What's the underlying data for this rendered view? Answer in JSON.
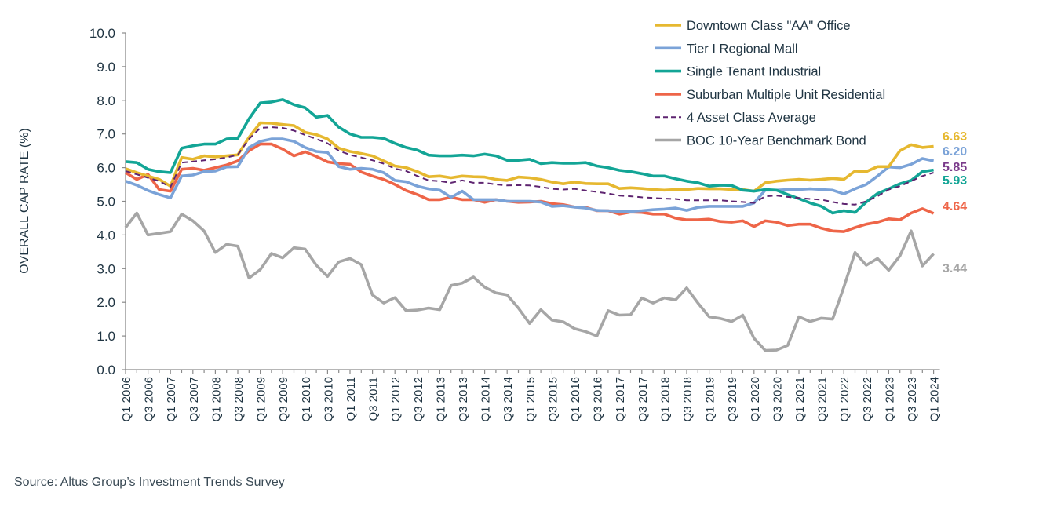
{
  "chart_data": {
    "type": "line",
    "title": "",
    "xlabel": "",
    "ylabel": "OVERALL CAP RATE (%)",
    "ylim": [
      0,
      10
    ],
    "yticks": [
      "0.0",
      "1.0",
      "2.0",
      "3.0",
      "4.0",
      "5.0",
      "6.0",
      "7.0",
      "8.0",
      "9.0",
      "10.0"
    ],
    "grid": false,
    "legend_position": "top-right",
    "x": [
      "Q1 2006",
      "Q2 2006",
      "Q3 2006",
      "Q4 2006",
      "Q1 2007",
      "Q2 2007",
      "Q3 2007",
      "Q4 2007",
      "Q1 2008",
      "Q2 2008",
      "Q3 2008",
      "Q4 2008",
      "Q1 2009",
      "Q2 2009",
      "Q3 2009",
      "Q4 2009",
      "Q1 2010",
      "Q2 2010",
      "Q3 2010",
      "Q4 2010",
      "Q1 2011",
      "Q2 2011",
      "Q3 2011",
      "Q4 2011",
      "Q1 2012",
      "Q2 2012",
      "Q3 2012",
      "Q4 2012",
      "Q1 2013",
      "Q2 2013",
      "Q3 2013",
      "Q4 2013",
      "Q1 2014",
      "Q2 2014",
      "Q3 2014",
      "Q4 2014",
      "Q1 2015",
      "Q2 2015",
      "Q3 2015",
      "Q4 2015",
      "Q1 2016",
      "Q2 2016",
      "Q3 2016",
      "Q4 2016",
      "Q1 2017",
      "Q2 2017",
      "Q3 2017",
      "Q4 2017",
      "Q1 2018",
      "Q2 2018",
      "Q3 2018",
      "Q4 2018",
      "Q1 2019",
      "Q2 2019",
      "Q3 2019",
      "Q4 2019",
      "Q1 2020",
      "Q2 2020",
      "Q3 2020",
      "Q4 2020",
      "Q1 2021",
      "Q2 2021",
      "Q3 2021",
      "Q4 2021",
      "Q1 2022",
      "Q2 2022",
      "Q3 2022",
      "Q4 2022",
      "Q1 2023",
      "Q2 2023",
      "Q3 2023",
      "Q4 2023",
      "Q1 2024"
    ],
    "xtick_labels": [
      "Q1 2006",
      "Q3 2006",
      "Q1 2007",
      "Q3 2007",
      "Q1 2008",
      "Q3 2008",
      "Q1 2009",
      "Q3 2009",
      "Q1 2010",
      "Q3 2010",
      "Q1 2011",
      "Q3 2011",
      "Q1 2012",
      "Q3 2012",
      "Q1 2013",
      "Q3 2013",
      "Q1 2014",
      "Q3 2014",
      "Q1 2015",
      "Q3 2015",
      "Q1 2016",
      "Q3 2016",
      "Q1 2017",
      "Q3 2017",
      "Q1 2018",
      "Q3 2018",
      "Q1 2019",
      "Q3 2019",
      "Q1 2020",
      "Q3 2020",
      "Q1 2021",
      "Q3 2021",
      "Q1 2022",
      "Q3 2022",
      "Q1 2023",
      "Q3 2023",
      "Q1 2024"
    ],
    "series": [
      {
        "name": "Downtown Class \"AA\" Office",
        "color": "#E6B830",
        "dashed": false,
        "end_label": "6.63",
        "values": [
          5.97,
          5.85,
          5.75,
          5.65,
          5.45,
          6.3,
          6.25,
          6.35,
          6.32,
          6.35,
          6.38,
          6.9,
          7.33,
          7.32,
          7.28,
          7.25,
          7.05,
          6.98,
          6.85,
          6.58,
          6.48,
          6.42,
          6.35,
          6.2,
          6.05,
          6.0,
          5.88,
          5.73,
          5.75,
          5.7,
          5.75,
          5.73,
          5.72,
          5.65,
          5.62,
          5.72,
          5.7,
          5.65,
          5.57,
          5.52,
          5.57,
          5.53,
          5.52,
          5.52,
          5.38,
          5.4,
          5.38,
          5.35,
          5.33,
          5.35,
          5.35,
          5.38,
          5.37,
          5.37,
          5.35,
          5.35,
          5.3,
          5.55,
          5.6,
          5.63,
          5.65,
          5.63,
          5.65,
          5.68,
          5.65,
          5.9,
          5.88,
          6.03,
          6.03,
          6.5,
          6.68,
          6.6,
          6.63
        ]
      },
      {
        "name": "Tier I Regional Mall",
        "color": "#7BA3D8",
        "dashed": false,
        "end_label": "6.20",
        "values": [
          5.6,
          5.48,
          5.32,
          5.2,
          5.1,
          5.75,
          5.78,
          5.88,
          5.9,
          6.02,
          6.03,
          6.6,
          6.78,
          6.85,
          6.85,
          6.78,
          6.6,
          6.48,
          6.45,
          6.03,
          5.95,
          5.98,
          5.95,
          5.85,
          5.62,
          5.58,
          5.45,
          5.37,
          5.33,
          5.12,
          5.3,
          5.05,
          5.05,
          5.05,
          5.0,
          5.0,
          5.0,
          4.98,
          4.85,
          4.87,
          4.83,
          4.8,
          4.73,
          4.72,
          4.7,
          4.7,
          4.72,
          4.75,
          4.77,
          4.8,
          4.73,
          4.82,
          4.85,
          4.85,
          4.85,
          4.85,
          4.95,
          5.33,
          5.33,
          5.35,
          5.35,
          5.37,
          5.35,
          5.33,
          5.22,
          5.37,
          5.5,
          5.75,
          6.02,
          6.0,
          6.1,
          6.27,
          6.2
        ]
      },
      {
        "name": "Single Tenant Industrial",
        "color": "#13A596",
        "dashed": false,
        "end_label": "5.93",
        "values": [
          6.18,
          6.15,
          5.95,
          5.88,
          5.85,
          6.58,
          6.65,
          6.7,
          6.7,
          6.85,
          6.87,
          7.45,
          7.92,
          7.95,
          8.02,
          7.87,
          7.78,
          7.5,
          7.55,
          7.2,
          7.0,
          6.9,
          6.9,
          6.87,
          6.72,
          6.6,
          6.52,
          6.37,
          6.35,
          6.35,
          6.37,
          6.35,
          6.4,
          6.35,
          6.22,
          6.22,
          6.25,
          6.12,
          6.15,
          6.13,
          6.13,
          6.15,
          6.05,
          6.0,
          5.92,
          5.88,
          5.82,
          5.75,
          5.75,
          5.67,
          5.6,
          5.55,
          5.45,
          5.48,
          5.47,
          5.33,
          5.3,
          5.35,
          5.33,
          5.2,
          5.08,
          4.95,
          4.85,
          4.65,
          4.72,
          4.67,
          4.98,
          5.23,
          5.37,
          5.52,
          5.62,
          5.88,
          5.93
        ]
      },
      {
        "name": "Suburban Multiple Unit Residential",
        "color": "#EE6548",
        "dashed": false,
        "end_label": "4.64",
        "values": [
          5.85,
          5.65,
          5.8,
          5.35,
          5.3,
          5.95,
          5.98,
          5.92,
          6.0,
          6.08,
          6.2,
          6.5,
          6.7,
          6.7,
          6.55,
          6.35,
          6.47,
          6.33,
          6.17,
          6.12,
          6.1,
          5.87,
          5.75,
          5.65,
          5.5,
          5.32,
          5.2,
          5.05,
          5.05,
          5.12,
          5.05,
          5.05,
          4.97,
          5.05,
          5.0,
          4.97,
          4.98,
          5.0,
          4.93,
          4.9,
          4.83,
          4.82,
          4.72,
          4.72,
          4.62,
          4.68,
          4.67,
          4.62,
          4.62,
          4.5,
          4.45,
          4.45,
          4.47,
          4.4,
          4.38,
          4.42,
          4.25,
          4.42,
          4.38,
          4.28,
          4.32,
          4.32,
          4.2,
          4.12,
          4.1,
          4.22,
          4.32,
          4.38,
          4.48,
          4.45,
          4.65,
          4.78,
          4.64
        ]
      },
      {
        "name": "4 Asset Class Average",
        "color": "#5E2470",
        "label_color": "#7A3A8A",
        "dashed": true,
        "end_label": "5.85",
        "values": [
          5.9,
          5.8,
          5.7,
          5.6,
          5.42,
          6.15,
          6.18,
          6.22,
          6.25,
          6.3,
          6.38,
          6.85,
          7.18,
          7.2,
          7.18,
          7.1,
          6.97,
          6.85,
          6.72,
          6.5,
          6.38,
          6.3,
          6.22,
          6.12,
          5.97,
          5.9,
          5.75,
          5.62,
          5.6,
          5.55,
          5.62,
          5.55,
          5.55,
          5.5,
          5.47,
          5.48,
          5.47,
          5.43,
          5.37,
          5.35,
          5.37,
          5.32,
          5.28,
          5.23,
          5.17,
          5.15,
          5.12,
          5.1,
          5.08,
          5.07,
          5.03,
          5.03,
          5.03,
          5.03,
          5.0,
          4.98,
          4.95,
          5.15,
          5.17,
          5.13,
          5.1,
          5.07,
          5.05,
          4.98,
          4.92,
          4.9,
          5.0,
          5.15,
          5.35,
          5.45,
          5.6,
          5.75,
          5.85
        ]
      },
      {
        "name": "BOC 10-Year Benchmark Bond",
        "color": "#A6A6A6",
        "dashed": false,
        "end_label": "3.44",
        "values": [
          4.22,
          4.65,
          4.0,
          4.05,
          4.1,
          4.62,
          4.42,
          4.12,
          3.48,
          3.72,
          3.67,
          2.72,
          2.97,
          3.45,
          3.32,
          3.62,
          3.58,
          3.1,
          2.77,
          3.2,
          3.3,
          3.12,
          2.22,
          1.98,
          2.14,
          1.75,
          1.77,
          1.83,
          1.78,
          2.5,
          2.57,
          2.75,
          2.45,
          2.28,
          2.22,
          1.83,
          1.37,
          1.78,
          1.47,
          1.42,
          1.22,
          1.13,
          1.0,
          1.75,
          1.62,
          1.63,
          2.13,
          1.98,
          2.13,
          2.07,
          2.43,
          1.98,
          1.57,
          1.52,
          1.43,
          1.62,
          0.93,
          0.57,
          0.58,
          0.72,
          1.57,
          1.43,
          1.53,
          1.5,
          2.45,
          3.48,
          3.1,
          3.3,
          2.95,
          3.38,
          4.12,
          3.08,
          3.44
        ]
      }
    ]
  },
  "source": "Source:  Altus Group’s Investment Trends Survey"
}
